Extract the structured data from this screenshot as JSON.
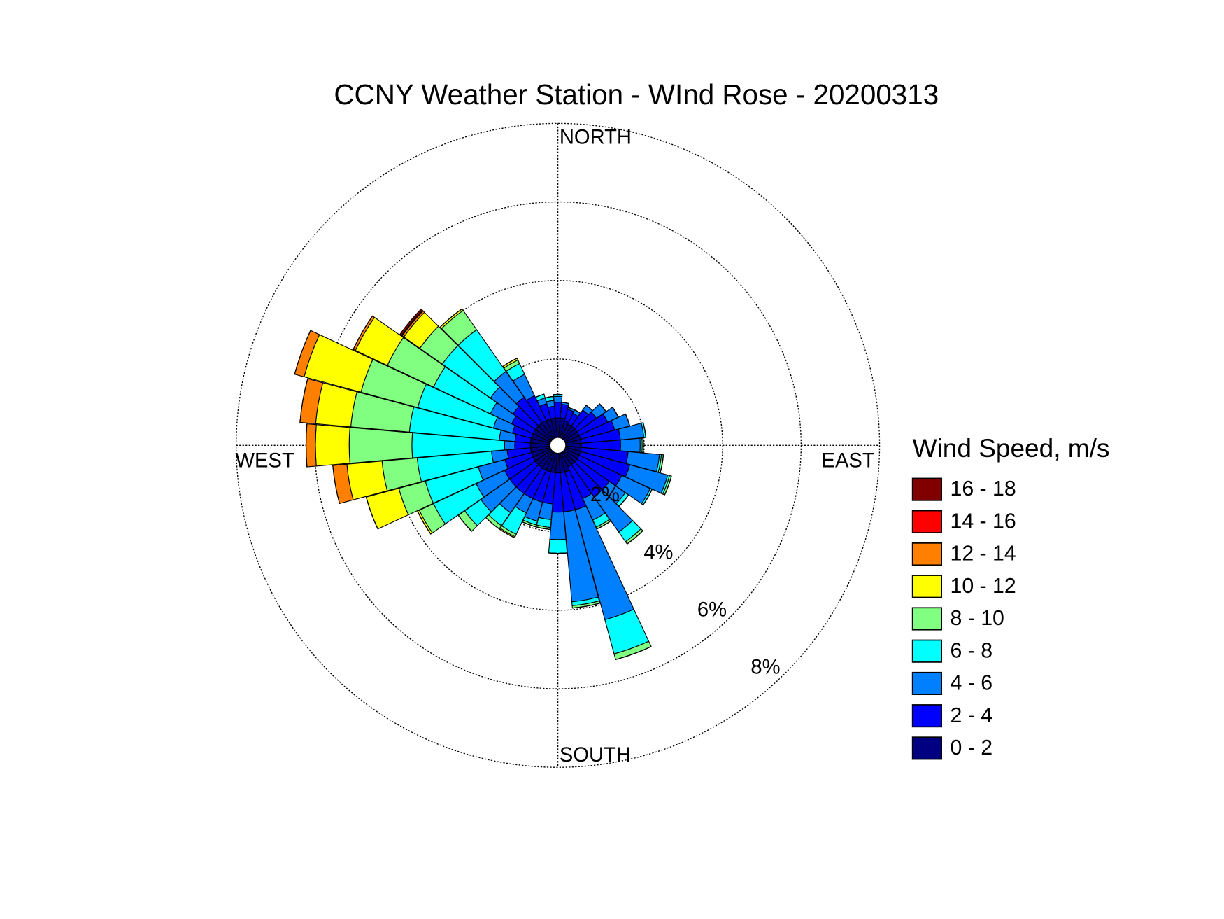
{
  "chart_data": {
    "type": "windrose",
    "title": "CCNY Weather Station - WInd Rose - 20200313",
    "legend_title": "Wind Speed, m/s",
    "direction_labels": {
      "north": "NORTH",
      "east": "EAST",
      "south": "SOUTH",
      "west": "WEST"
    },
    "theta": [
      0,
      10,
      20,
      30,
      40,
      50,
      60,
      70,
      80,
      90,
      100,
      110,
      120,
      130,
      140,
      150,
      160,
      170,
      180,
      190,
      200,
      210,
      220,
      230,
      240,
      250,
      260,
      270,
      280,
      290,
      300,
      310,
      320,
      330,
      340,
      350
    ],
    "rlim": [
      0,
      8
    ],
    "rticks": [
      {
        "value": 2,
        "label": "2%"
      },
      {
        "value": 4,
        "label": "4%"
      },
      {
        "value": 6,
        "label": "6%"
      },
      {
        "value": 8,
        "label": "8%"
      }
    ],
    "series": [
      {
        "name": "0 - 2",
        "color": "#000080",
        "values": [
          0.5,
          0.5,
          0.45,
          0.4,
          0.4,
          0.4,
          0.4,
          0.4,
          0.4,
          0.4,
          0.4,
          0.4,
          0.4,
          0.4,
          0.4,
          0.4,
          0.5,
          0.5,
          0.5,
          0.5,
          0.5,
          0.5,
          0.5,
          0.5,
          0.5,
          0.5,
          0.5,
          0.5,
          0.5,
          0.5,
          0.5,
          0.5,
          0.5,
          0.5,
          0.5,
          0.5
        ]
      },
      {
        "name": "2 - 4",
        "color": "#0000ff",
        "values": [
          0.4,
          0.35,
          0.3,
          0.3,
          0.5,
          0.6,
          0.8,
          0.9,
          1.0,
          1.0,
          1.2,
          1.3,
          1.2,
          1.0,
          1.0,
          0.9,
          1.0,
          1.0,
          1.0,
          0.8,
          0.8,
          0.8,
          0.8,
          0.8,
          0.8,
          0.7,
          0.6,
          0.4,
          0.4,
          0.5,
          0.6,
          0.7,
          0.8,
          0.7,
          0.4,
          0.3
        ]
      },
      {
        "name": "4 - 6",
        "color": "#0080ff",
        "values": [
          0.15,
          0.05,
          0.05,
          0.1,
          0.15,
          0.3,
          0.3,
          0.4,
          0.6,
          0.5,
          0.8,
          1.0,
          0.8,
          0.5,
          1.1,
          0.6,
          2.9,
          2.3,
          0.7,
          0.4,
          0.5,
          0.4,
          0.6,
          0.9,
          0.8,
          0.7,
          0.4,
          0.26,
          0.4,
          0.5,
          0.6,
          0.7,
          0.8,
          0.6,
          0.15,
          0.15
        ]
      },
      {
        "name": "6 - 8",
        "color": "#00ffff",
        "values": [
          0.05,
          0,
          0,
          0,
          0,
          0,
          0,
          0,
          0.05,
          0.05,
          0.05,
          0.05,
          0.05,
          0.1,
          0.3,
          0.2,
          0.9,
          0.1,
          0.35,
          0.2,
          0.1,
          0.6,
          0.4,
          0.5,
          1.2,
          1.4,
          1.9,
          2.36,
          2.3,
          2.0,
          1.6,
          1.5,
          1.3,
          0.3,
          0.1,
          0.1
        ]
      },
      {
        "name": "8 - 10",
        "color": "#80ff80",
        "values": [
          0,
          0,
          0,
          0,
          0,
          0,
          0,
          0,
          0,
          0.03,
          0.05,
          0.05,
          0,
          0,
          0.07,
          0.05,
          0.15,
          0.06,
          0,
          0.05,
          0.05,
          0.07,
          0.1,
          0.2,
          0.4,
          0.7,
          0.9,
          1.6,
          1.5,
          1.5,
          1.3,
          0.7,
          0.6,
          0.1,
          0,
          0
        ]
      },
      {
        "name": "10 - 12",
        "color": "#ffff00",
        "values": [
          0,
          0,
          0,
          0,
          0,
          0,
          0,
          0,
          0,
          0,
          0,
          0,
          0,
          0,
          0,
          0,
          0,
          0,
          0,
          0,
          0,
          0.03,
          0,
          0,
          0.05,
          0.86,
          0.9,
          0.86,
          0.9,
          1.5,
          0.9,
          0.5,
          0.05,
          0.05,
          0,
          0
        ]
      },
      {
        "name": "12 - 14",
        "color": "#ff8000",
        "values": [
          0,
          0,
          0,
          0,
          0,
          0,
          0,
          0,
          0,
          0,
          0,
          0,
          0,
          0,
          0,
          0,
          0,
          0,
          0,
          0,
          0,
          0,
          0,
          0,
          0,
          0,
          0.36,
          0.24,
          0.4,
          0.25,
          0.06,
          0.05,
          0,
          0,
          0,
          0
        ]
      },
      {
        "name": "14 - 16",
        "color": "#ff0000",
        "values": [
          0,
          0,
          0,
          0,
          0,
          0,
          0,
          0,
          0,
          0,
          0,
          0,
          0,
          0,
          0,
          0,
          0,
          0,
          0,
          0,
          0,
          0,
          0,
          0,
          0,
          0,
          0,
          0,
          0,
          0,
          0,
          0.02,
          0,
          0,
          0,
          0
        ]
      },
      {
        "name": "16 - 18",
        "color": "#800000",
        "values": [
          0,
          0,
          0,
          0,
          0,
          0,
          0,
          0,
          0,
          0,
          0,
          0,
          0,
          0,
          0,
          0,
          0,
          0,
          0,
          0,
          0,
          0,
          0,
          0,
          0,
          0,
          0,
          0,
          0,
          0,
          0,
          0.05,
          0,
          0,
          0,
          0
        ]
      }
    ]
  }
}
